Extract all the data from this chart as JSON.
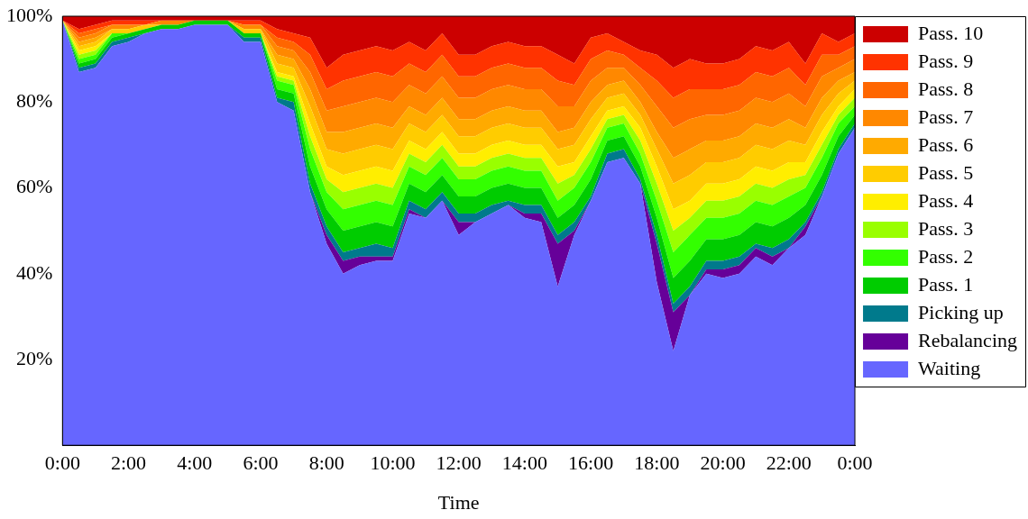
{
  "chart_data": {
    "type": "area",
    "stacked": true,
    "xlabel": "Time",
    "legend": "top right",
    "grid": false,
    "marker": "none",
    "x": [
      0,
      0.5,
      1,
      1.5,
      2,
      2.5,
      3,
      3.5,
      4,
      4.5,
      5,
      5.5,
      6,
      6.5,
      7,
      7.5,
      8,
      8.5,
      9,
      9.5,
      10,
      10.5,
      11,
      11.5,
      12,
      12.5,
      13,
      13.5,
      14,
      14.5,
      15,
      15.5,
      16,
      16.5,
      17,
      17.5,
      18,
      18.5,
      19,
      19.5,
      20,
      20.5,
      21,
      21.5,
      22,
      22.5,
      23,
      23.5,
      24
    ],
    "xlim": [
      0,
      24
    ],
    "xticks": [
      {
        "value": 0,
        "label": "0:00"
      },
      {
        "value": 2,
        "label": "2:00"
      },
      {
        "value": 4,
        "label": "4:00"
      },
      {
        "value": 6,
        "label": "6:00"
      },
      {
        "value": 8,
        "label": "8:00"
      },
      {
        "value": 10,
        "label": "10:00"
      },
      {
        "value": 12,
        "label": "12:00"
      },
      {
        "value": 14,
        "label": "14:00"
      },
      {
        "value": 16,
        "label": "16:00"
      },
      {
        "value": 18,
        "label": "18:00"
      },
      {
        "value": 20,
        "label": "20:00"
      },
      {
        "value": 22,
        "label": "22:00"
      },
      {
        "value": 24,
        "label": "0:00"
      }
    ],
    "ylim": [
      0,
      100
    ],
    "yticks": [
      {
        "value": 20,
        "label": "20%"
      },
      {
        "value": 40,
        "label": "40%"
      },
      {
        "value": 60,
        "label": "60%"
      },
      {
        "value": 80,
        "label": "80%"
      },
      {
        "value": 100,
        "label": "100%"
      }
    ],
    "series": [
      {
        "name": "Waiting",
        "color": "#6666ff",
        "values": [
          99,
          87,
          88,
          93,
          94,
          96,
          97,
          97,
          98,
          98,
          98,
          94,
          94,
          80,
          78,
          59,
          47,
          40,
          42,
          43,
          43,
          54,
          53,
          57,
          49,
          52,
          54,
          56,
          53,
          52,
          37,
          49,
          57,
          66,
          67,
          61,
          38,
          22,
          35,
          40,
          39,
          40,
          44,
          42,
          46,
          49,
          58,
          68,
          74
        ]
      },
      {
        "name": "Rebalancing",
        "color": "#660099",
        "values": [
          0,
          0,
          0,
          0,
          0,
          0,
          0,
          0,
          0,
          0,
          0,
          0,
          0,
          0,
          0,
          0,
          2,
          3,
          2,
          1,
          1,
          1,
          0,
          0,
          3,
          0,
          0,
          0,
          1,
          2,
          10,
          1,
          0,
          0,
          0,
          0,
          9,
          9,
          0,
          1,
          2,
          2,
          2,
          2,
          0,
          2,
          0,
          0,
          0
        ]
      },
      {
        "name": "Picking up",
        "color": "#007a8c",
        "values": [
          0,
          1,
          1,
          1,
          1,
          0,
          0,
          0,
          0,
          0,
          0,
          1,
          1,
          1,
          2,
          2,
          2,
          2,
          2,
          3,
          2,
          2,
          2,
          2,
          2,
          2,
          2,
          1,
          2,
          2,
          2,
          2,
          1,
          2,
          2,
          1,
          2,
          2,
          2,
          2,
          2,
          2,
          1,
          2,
          2,
          1,
          1,
          1,
          1
        ]
      },
      {
        "name": "Pass. 1",
        "color": "#00cc00",
        "values": [
          0,
          1,
          1,
          1,
          1,
          1,
          1,
          1,
          1,
          1,
          1,
          1,
          1,
          2,
          2,
          4,
          4,
          5,
          5,
          5,
          5,
          4,
          4,
          4,
          4,
          4,
          4,
          4,
          4,
          4,
          4,
          4,
          4,
          3,
          3,
          3,
          4,
          6,
          6,
          5,
          5,
          5,
          5,
          5,
          5,
          4,
          4,
          3,
          2
        ]
      },
      {
        "name": "Pass. 2",
        "color": "#33ff00",
        "values": [
          0,
          1,
          1,
          1,
          0,
          0,
          0,
          0,
          0,
          0,
          0,
          0,
          0,
          2,
          2,
          4,
          4,
          5,
          5,
          5,
          5,
          4,
          4,
          4,
          4,
          4,
          4,
          4,
          4,
          4,
          4,
          4,
          4,
          3,
          3,
          3,
          4,
          6,
          6,
          5,
          5,
          5,
          5,
          5,
          5,
          4,
          4,
          3,
          2
        ]
      },
      {
        "name": "Pass. 3",
        "color": "#99ff00",
        "values": [
          0,
          1,
          1,
          0,
          0,
          0,
          0,
          0,
          0,
          0,
          0,
          0,
          0,
          1,
          1,
          3,
          3,
          4,
          4,
          4,
          4,
          3,
          3,
          3,
          3,
          3,
          3,
          3,
          3,
          3,
          4,
          3,
          3,
          2,
          2,
          3,
          4,
          5,
          4,
          4,
          4,
          4,
          4,
          4,
          4,
          3,
          3,
          2,
          2
        ]
      },
      {
        "name": "Pass. 4",
        "color": "#ffee00",
        "values": [
          0,
          1,
          1,
          0,
          0,
          0,
          0,
          0,
          0,
          0,
          0,
          0,
          0,
          1,
          1,
          3,
          3,
          4,
          4,
          4,
          4,
          3,
          3,
          3,
          3,
          3,
          3,
          3,
          3,
          3,
          4,
          3,
          3,
          2,
          2,
          3,
          4,
          5,
          4,
          4,
          4,
          4,
          4,
          4,
          4,
          3,
          3,
          2,
          2
        ]
      },
      {
        "name": "Pass. 5",
        "color": "#ffcc00",
        "values": [
          0,
          1,
          1,
          1,
          1,
          1,
          0,
          0,
          0,
          0,
          0,
          1,
          1,
          2,
          2,
          4,
          4,
          5,
          5,
          5,
          5,
          4,
          4,
          4,
          4,
          4,
          4,
          4,
          4,
          4,
          4,
          4,
          4,
          3,
          3,
          3,
          4,
          6,
          6,
          5,
          5,
          5,
          5,
          5,
          5,
          4,
          4,
          3,
          2
        ]
      },
      {
        "name": "Pass. 6",
        "color": "#ffaa00",
        "values": [
          0,
          1,
          1,
          0,
          0,
          0,
          0,
          0,
          0,
          0,
          0,
          0,
          0,
          2,
          2,
          4,
          4,
          5,
          5,
          5,
          5,
          4,
          4,
          4,
          4,
          4,
          4,
          4,
          4,
          4,
          4,
          4,
          4,
          3,
          3,
          3,
          4,
          6,
          6,
          5,
          5,
          5,
          5,
          5,
          5,
          4,
          4,
          3,
          2
        ]
      },
      {
        "name": "Pass. 7",
        "color": "#ff8800",
        "values": [
          0,
          1,
          1,
          1,
          1,
          0,
          1,
          1,
          0,
          0,
          0,
          1,
          1,
          2,
          2,
          4,
          5,
          6,
          6,
          6,
          6,
          5,
          5,
          5,
          5,
          5,
          5,
          5,
          5,
          5,
          6,
          5,
          5,
          4,
          3,
          4,
          6,
          7,
          7,
          6,
          6,
          6,
          6,
          6,
          6,
          5,
          5,
          3,
          3
        ]
      },
      {
        "name": "Pass. 8",
        "color": "#ff6600",
        "values": [
          0,
          1,
          1,
          0,
          0,
          0,
          0,
          0,
          0,
          0,
          0,
          0,
          0,
          2,
          2,
          4,
          5,
          6,
          6,
          6,
          6,
          5,
          5,
          5,
          5,
          5,
          5,
          5,
          5,
          5,
          6,
          5,
          5,
          4,
          3,
          4,
          6,
          7,
          7,
          6,
          6,
          6,
          6,
          6,
          6,
          5,
          5,
          3,
          3
        ]
      },
      {
        "name": "Pass. 9",
        "color": "#ff3300",
        "values": [
          0,
          1,
          1,
          1,
          1,
          1,
          0,
          0,
          0,
          0,
          0,
          1,
          1,
          2,
          2,
          4,
          5,
          6,
          6,
          6,
          6,
          5,
          5,
          5,
          5,
          5,
          5,
          5,
          5,
          5,
          6,
          5,
          5,
          4,
          3,
          4,
          6,
          7,
          7,
          6,
          6,
          6,
          6,
          6,
          6,
          5,
          5,
          3,
          3
        ]
      },
      {
        "name": "Pass. 10",
        "color": "#cc0000",
        "values": [
          1,
          3,
          2,
          1,
          1,
          1,
          1,
          1,
          1,
          1,
          1,
          1,
          1,
          3,
          4,
          5,
          12,
          9,
          8,
          7,
          8,
          6,
          8,
          4,
          9,
          9,
          7,
          6,
          7,
          7,
          9,
          11,
          5,
          4,
          6,
          8,
          9,
          12,
          10,
          11,
          11,
          10,
          7,
          8,
          6,
          11,
          4,
          6,
          4
        ]
      }
    ]
  }
}
